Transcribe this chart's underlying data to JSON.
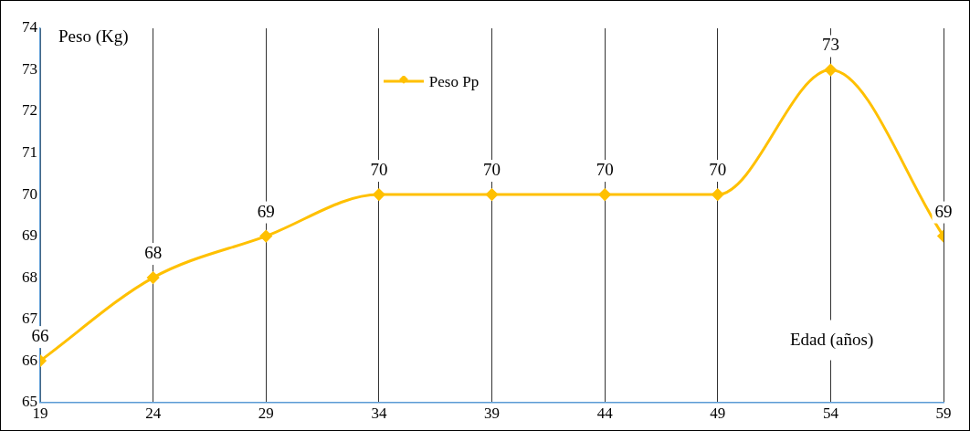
{
  "chart_data": {
    "type": "line",
    "ylabel": "Peso (Kg)",
    "xlabel": "Edad (años)",
    "x": [
      19,
      24,
      29,
      34,
      39,
      44,
      49,
      54,
      59
    ],
    "series": [
      {
        "name": "Peso Pp",
        "color": "#ffc000",
        "values": [
          66,
          68,
          69,
          70,
          70,
          70,
          70,
          73,
          69
        ]
      }
    ],
    "xlim": [
      19,
      59
    ],
    "xticks": [
      19,
      24,
      29,
      34,
      39,
      44,
      49,
      54,
      59
    ],
    "ylim": [
      65,
      74
    ],
    "yticks": [
      65,
      66,
      67,
      68,
      69,
      70,
      71,
      72,
      73,
      74
    ],
    "grid": "x",
    "legend": "top",
    "marker": "diamond",
    "line_style": "solid",
    "data_labels": true
  }
}
